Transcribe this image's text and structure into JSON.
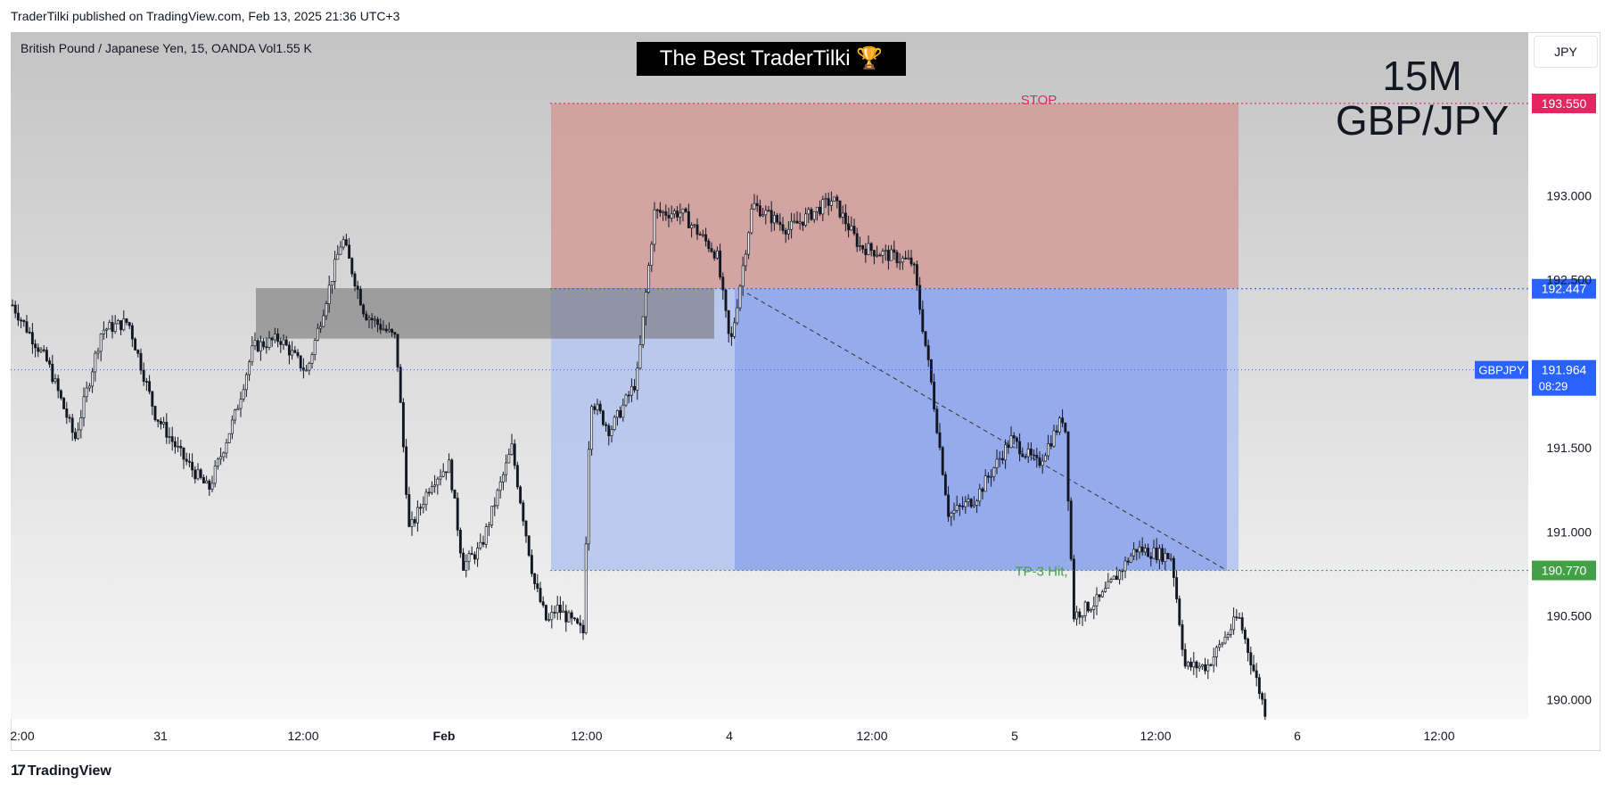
{
  "publisher_line": "TraderTilki published on TradingView.com, Feb 13, 2025 21:36 UTC+3",
  "symbol_line": "British Pound / Japanese Yen, 15, OANDA  Vol1.55 K",
  "banner": "The Best TraderTilki 🏆",
  "currency_button": "JPY",
  "title_line1": "15M",
  "title_line2": "GBP/JPY",
  "footer_brand": "TradingView",
  "colors": {
    "stop_zone": "#d19b99",
    "target_zone": "#8fa6ea",
    "stop_label": "#e5255f",
    "entry_label": "#2962ff",
    "tp_label": "#43a047",
    "current_price": "#2962ff",
    "candle": "#131722"
  },
  "chart_data": {
    "type": "candlestick",
    "symbol": "GBPJPY",
    "timeframe": "15",
    "x_ticks": [
      "2:00",
      "31",
      "12:00",
      "Feb",
      "12:00",
      "4",
      "12:00",
      "5",
      "12:00",
      "6",
      "12:00"
    ],
    "y_ticks": [
      "193.000",
      "192.500",
      "191.500",
      "191.000",
      "190.500",
      "190.000"
    ],
    "ylim": [
      189.91,
      193.95
    ],
    "price_markers": [
      {
        "label": "193.550",
        "price": 193.55,
        "color": "#e5255f"
      },
      {
        "label": "192.447",
        "price": 192.447,
        "color": "#2962ff"
      },
      {
        "label": "190.770",
        "price": 190.77,
        "color": "#43a047"
      }
    ],
    "current_price": {
      "symbol": "GBPJPY",
      "price": "191.964",
      "countdown": "08:29"
    },
    "annotations": {
      "stop": "STOP",
      "tp": "TP-3 Hit,"
    },
    "close_path": [
      [
        0,
        192.35
      ],
      [
        40,
        192.0
      ],
      [
        70,
        191.55
      ],
      [
        100,
        192.2
      ],
      [
        130,
        192.25
      ],
      [
        160,
        191.7
      ],
      [
        190,
        191.45
      ],
      [
        220,
        191.25
      ],
      [
        250,
        191.7
      ],
      [
        270,
        192.1
      ],
      [
        300,
        192.15
      ],
      [
        330,
        191.95
      ],
      [
        370,
        192.75
      ],
      [
        395,
        192.3
      ],
      [
        430,
        192.15
      ],
      [
        445,
        191.0
      ],
      [
        470,
        191.3
      ],
      [
        490,
        191.4
      ],
      [
        505,
        190.8
      ],
      [
        525,
        190.9
      ],
      [
        560,
        191.5
      ],
      [
        585,
        190.7
      ],
      [
        600,
        190.45
      ],
      [
        610,
        190.55
      ],
      [
        640,
        190.4
      ],
      [
        648,
        191.8
      ],
      [
        670,
        191.6
      ],
      [
        700,
        191.9
      ],
      [
        720,
        192.9
      ],
      [
        750,
        192.9
      ],
      [
        790,
        192.65
      ],
      [
        805,
        192.1
      ],
      [
        830,
        192.95
      ],
      [
        870,
        192.8
      ],
      [
        920,
        192.98
      ],
      [
        950,
        192.7
      ],
      [
        980,
        192.65
      ],
      [
        1010,
        192.6
      ],
      [
        1030,
        191.9
      ],
      [
        1050,
        191.1
      ],
      [
        1080,
        191.2
      ],
      [
        1120,
        191.55
      ],
      [
        1150,
        191.4
      ],
      [
        1180,
        191.7
      ],
      [
        1190,
        190.5
      ],
      [
        1220,
        190.6
      ],
      [
        1260,
        190.9
      ],
      [
        1300,
        190.85
      ],
      [
        1315,
        190.2
      ],
      [
        1340,
        190.2
      ],
      [
        1375,
        190.5
      ],
      [
        1405,
        189.93
      ]
    ],
    "stop_zone": {
      "from_price": 193.55,
      "to_price": 192.447
    },
    "target_zone": {
      "from_price": 192.447,
      "to_price": 190.77
    },
    "supply_box": {
      "from_price": 192.45,
      "to_price": 192.15
    }
  }
}
